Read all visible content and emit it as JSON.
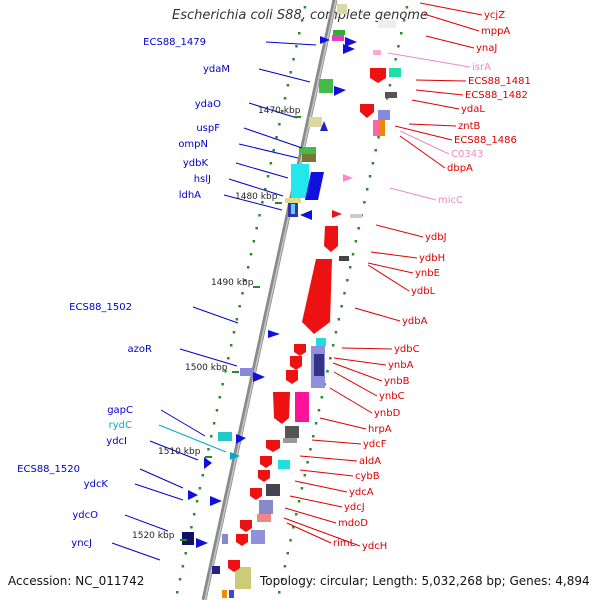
{
  "title": "Escherichia coli S88, complete genome",
  "accession": "Accession: NC_011742",
  "topology": "Topology: circular; Length: 5,032,268 bp; Genes: 4,894",
  "colors": {
    "backbone": "#888888",
    "tick": "#2a8a2a",
    "label_blue": "#0000cc",
    "label_red": "#dd0000",
    "label_pink": "#ee88cc",
    "label_cyan": "#00aacc",
    "label_black": "#222222"
  },
  "kbp_labels": [
    {
      "text": "1470 kbp"
    },
    {
      "text": "1480 kbp"
    },
    {
      "text": "1490 kbp"
    },
    {
      "text": "1500 kbp"
    },
    {
      "text": "1510 kbp"
    },
    {
      "text": "1520 kbp"
    }
  ],
  "left_labels": [
    {
      "text": "ECS88_1479",
      "color": "blue"
    },
    {
      "text": "ydaM",
      "color": "blue"
    },
    {
      "text": "ydaO",
      "color": "blue"
    },
    {
      "text": "uspF",
      "color": "blue"
    },
    {
      "text": "ompN",
      "color": "blue"
    },
    {
      "text": "ydbK",
      "color": "blue"
    },
    {
      "text": "hslJ",
      "color": "blue"
    },
    {
      "text": "ldhA",
      "color": "blue"
    },
    {
      "text": "ECS88_1502",
      "color": "blue"
    },
    {
      "text": "azoR",
      "color": "blue"
    },
    {
      "text": "gapC",
      "color": "blue"
    },
    {
      "text": "rydC",
      "color": "cyan"
    },
    {
      "text": "ydcI",
      "color": "blue"
    },
    {
      "text": "ECS88_1520",
      "color": "blue"
    },
    {
      "text": "ydcK",
      "color": "blue"
    },
    {
      "text": "ydcO",
      "color": "blue"
    },
    {
      "text": "yncJ",
      "color": "blue"
    }
  ],
  "right_labels": [
    {
      "text": "ycjZ",
      "color": "red"
    },
    {
      "text": "mppA",
      "color": "red"
    },
    {
      "text": "ynaJ",
      "color": "red"
    },
    {
      "text": "isrA",
      "color": "pink"
    },
    {
      "text": "ECS88_1481",
      "color": "red"
    },
    {
      "text": "ECS88_1482",
      "color": "red"
    },
    {
      "text": "ydaL",
      "color": "red"
    },
    {
      "text": "zntB",
      "color": "red"
    },
    {
      "text": "ECS88_1486",
      "color": "red"
    },
    {
      "text": "C0343",
      "color": "pink"
    },
    {
      "text": "dbpA",
      "color": "red"
    },
    {
      "text": "micC",
      "color": "pink"
    },
    {
      "text": "ydbJ",
      "color": "red"
    },
    {
      "text": "ydbH",
      "color": "red"
    },
    {
      "text": "ynbE",
      "color": "red"
    },
    {
      "text": "ydbL",
      "color": "red"
    },
    {
      "text": "ydbA",
      "color": "red"
    },
    {
      "text": "ydbC",
      "color": "red"
    },
    {
      "text": "ynbA",
      "color": "red"
    },
    {
      "text": "ynbB",
      "color": "red"
    },
    {
      "text": "ynbC",
      "color": "red"
    },
    {
      "text": "ynbD",
      "color": "red"
    },
    {
      "text": "hrpA",
      "color": "red"
    },
    {
      "text": "ydcF",
      "color": "red"
    },
    {
      "text": "aldA",
      "color": "red"
    },
    {
      "text": "cybB",
      "color": "red"
    },
    {
      "text": "ydcA",
      "color": "red"
    },
    {
      "text": "ydcJ",
      "color": "red"
    },
    {
      "text": "mdoD",
      "color": "red"
    },
    {
      "text": "rimL",
      "color": "red"
    },
    {
      "text": "ydcH",
      "color": "red"
    }
  ]
}
